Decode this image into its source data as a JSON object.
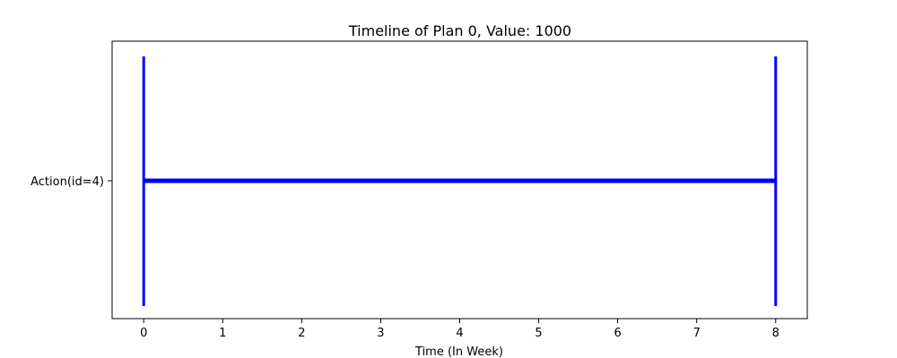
{
  "chart_data": {
    "type": "timeline",
    "title": "Timeline of Plan 0, Value: 1000",
    "xlabel": "Time (In Week)",
    "ylabel": "",
    "xlim": [
      -0.4,
      8.4
    ],
    "x_ticks": [
      "0",
      "1",
      "2",
      "3",
      "4",
      "5",
      "6",
      "7",
      "8"
    ],
    "y_categories": [
      "Action(id=4)"
    ],
    "grid": false,
    "legend": "none",
    "color": "#0000ff",
    "series": [
      {
        "category": "Action(id=4)",
        "start": 0,
        "end": 8
      }
    ],
    "markers": [
      {
        "x": 0
      },
      {
        "x": 8
      }
    ]
  }
}
